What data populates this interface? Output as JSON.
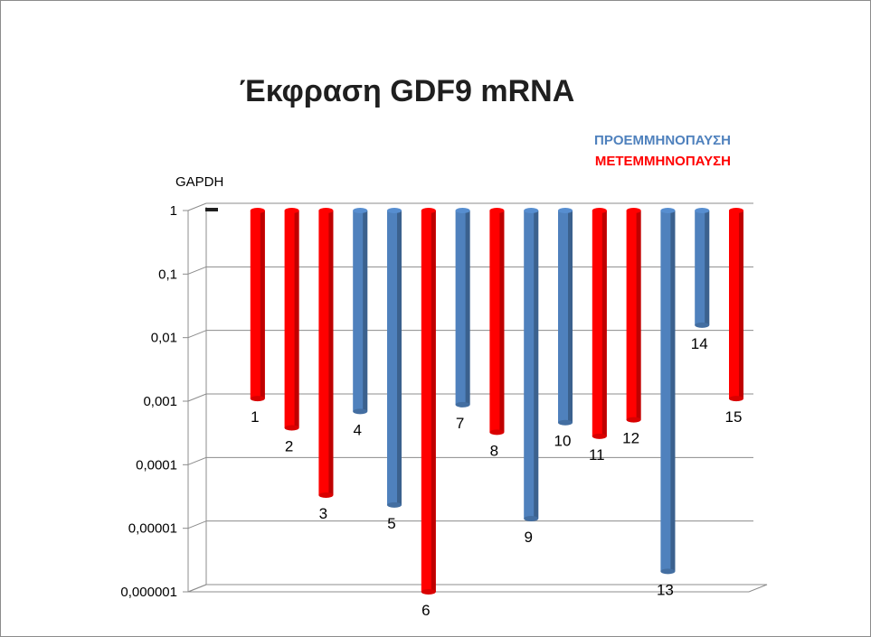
{
  "chart_data": {
    "type": "bar",
    "title": "Έκφραση GDF9 mRNA",
    "ylabel": "GAPDH",
    "y_scale": "log",
    "ylim": [
      1e-06,
      1
    ],
    "y_ticks": [
      "1",
      "0,1",
      "0,01",
      "0,001",
      "0,0001",
      "0,00001",
      "0,000001"
    ],
    "grid": true,
    "legend_position": "top-right",
    "series": [
      {
        "name": "ΠΡΟΕΜΜΗΝΟΠΑΥΣΗ",
        "color": "#4f81bd"
      },
      {
        "name": "ΜΕΤΕΜΜΗΝΟΠΑΥΣΗ",
        "color": "#ff0000"
      }
    ],
    "categories": [
      "",
      "1",
      "2",
      "3",
      "4",
      "5",
      "6",
      "7",
      "8",
      "9",
      "10",
      "11",
      "12",
      "13",
      "14",
      "15"
    ],
    "values": [
      1,
      0.0011,
      0.00038,
      3.32e-05,
      0.00069,
      2.33e-05,
      1e-06,
      0.00088,
      0.000325,
      1.42e-05,
      0.00046,
      0.00028,
      0.00051,
      2.1e-06,
      0.0157,
      0.0011
    ],
    "groups": [
      "reference",
      "ΜΕΤΕΜΜΗΝΟΠΑΥΣΗ",
      "ΜΕΤΕΜΜΗΝΟΠΑΥΣΗ",
      "ΜΕΤΕΜΜΗΝΟΠΑΥΣΗ",
      "ΠΡΟΕΜΜΗΝΟΠΑΥΣΗ",
      "ΠΡΟΕΜΜΗΝΟΠΑΥΣΗ",
      "ΜΕΤΕΜΜΗΝΟΠΑΥΣΗ",
      "ΠΡΟΕΜΜΗΝΟΠΑΥΣΗ",
      "ΜΕΤΕΜΜΗΝΟΠΑΥΣΗ",
      "ΠΡΟΕΜΜΗΝΟΠΑΥΣΗ",
      "ΠΡΟΕΜΜΗΝΟΠΑΥΣΗ",
      "ΜΕΤΕΜΜΗΝΟΠΑΥΣΗ",
      "ΜΕΤΕΜΜΗΝΟΠΑΥΣΗ",
      "ΠΡΟΕΜΜΗΝΟΠΑΥΣΗ",
      "ΠΡΟΕΜΜΗΝΟΠΑΥΣΗ",
      "ΜΕΤΕΜΜΗΝΟΠΑΥΣΗ"
    ],
    "colors": {
      "reference": "#1f1f1f",
      "ΠΡΟΕΜΜΗΝΟΠΑΥΣΗ": "#4f81bd",
      "ΜΕΤΕΜΜΗΝΟΠΑΥΣΗ": "#ff0000"
    }
  }
}
